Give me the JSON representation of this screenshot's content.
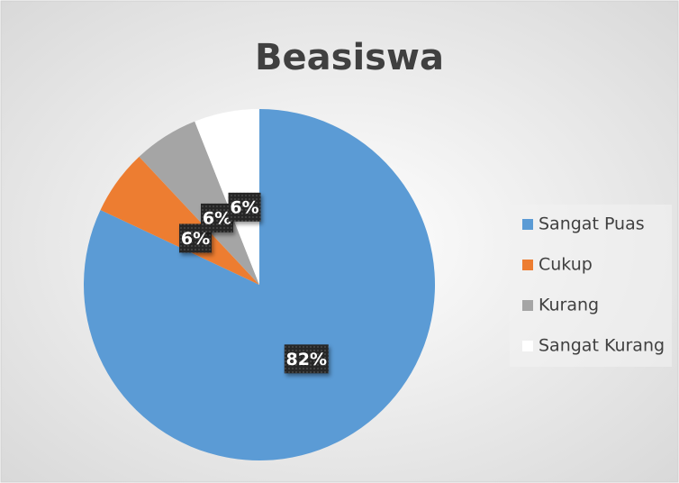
{
  "chart_data": {
    "type": "pie",
    "title": "Beasiswa",
    "categories": [
      "Sangat Puas",
      "Cukup",
      "Kurang",
      "Sangat Kurang"
    ],
    "values": [
      82,
      6,
      6,
      6
    ],
    "value_labels": [
      "82%",
      "6%",
      "6%",
      "6%"
    ],
    "colors": [
      "#5b9bd5",
      "#ed7d31",
      "#a5a5a5",
      "#ffffff"
    ],
    "legend": "right"
  }
}
